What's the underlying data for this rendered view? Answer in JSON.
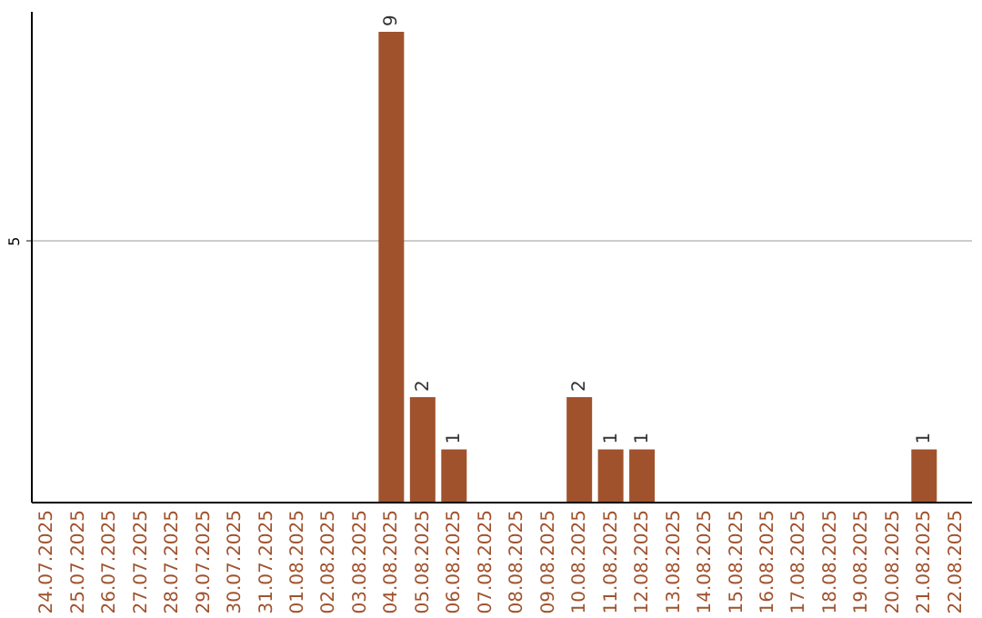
{
  "chart_data": {
    "type": "bar",
    "categories": [
      "24.07.2025",
      "25.07.2025",
      "26.07.2025",
      "27.07.2025",
      "28.07.2025",
      "29.07.2025",
      "30.07.2025",
      "31.07.2025",
      "01.08.2025",
      "02.08.2025",
      "03.08.2025",
      "04.08.2025",
      "05.08.2025",
      "06.08.2025",
      "07.08.2025",
      "08.08.2025",
      "09.08.2025",
      "10.08.2025",
      "11.08.2025",
      "12.08.2025",
      "13.08.2025",
      "14.08.2025",
      "15.08.2025",
      "16.08.2025",
      "17.08.2025",
      "18.08.2025",
      "19.08.2025",
      "20.08.2025",
      "21.08.2025",
      "22.08.2025"
    ],
    "values": [
      0,
      0,
      0,
      0,
      0,
      0,
      0,
      0,
      0,
      0,
      0,
      9,
      2,
      1,
      0,
      0,
      0,
      2,
      1,
      1,
      0,
      0,
      0,
      0,
      0,
      0,
      0,
      0,
      1,
      0
    ],
    "value_labels": [
      null,
      null,
      null,
      null,
      null,
      null,
      null,
      null,
      null,
      null,
      null,
      "9",
      "2",
      "1",
      null,
      null,
      null,
      "2",
      "1",
      "1",
      null,
      null,
      null,
      null,
      null,
      null,
      null,
      null,
      "1",
      null
    ],
    "color": "#a0522d",
    "ylim": [
      0,
      9.4
    ],
    "yticks": [
      5
    ],
    "grid": "y"
  }
}
